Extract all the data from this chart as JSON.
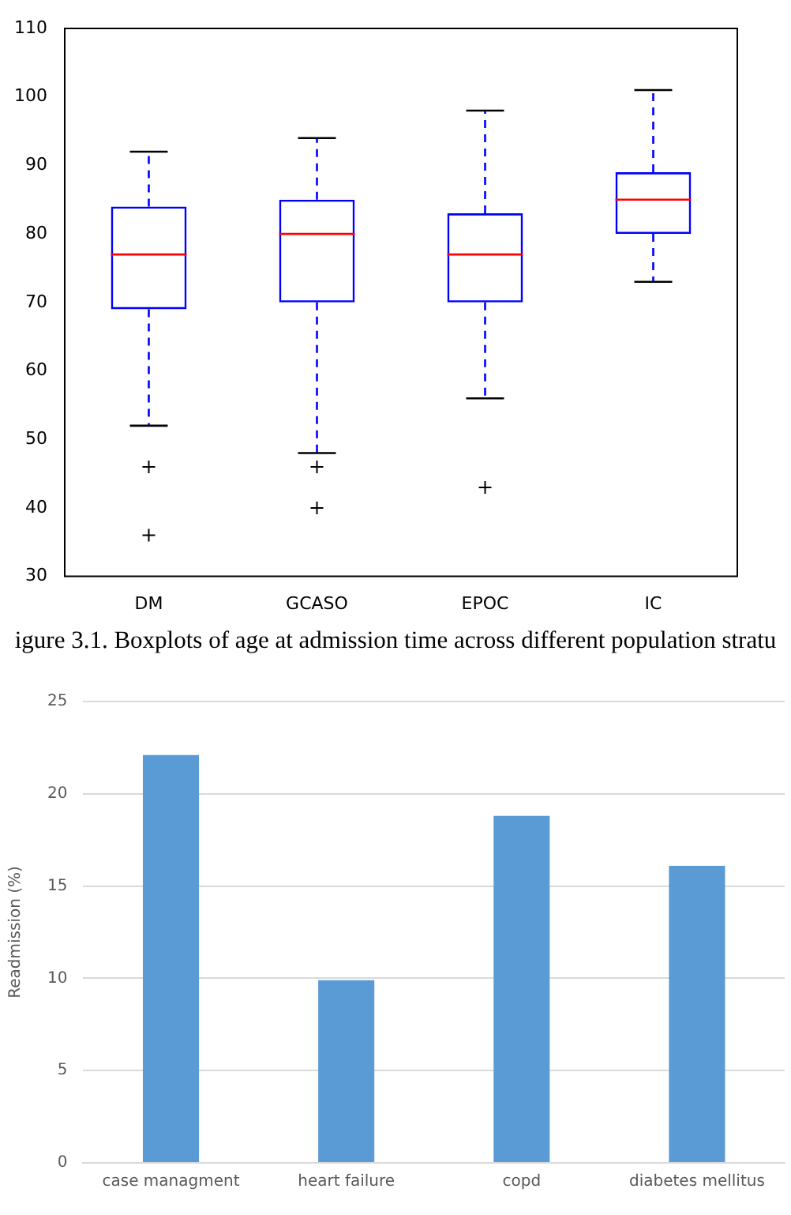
{
  "chart_data": [
    {
      "type": "box",
      "categories": [
        "DM",
        "GCASO",
        "EPOC",
        "IC"
      ],
      "boxes": [
        {
          "low": 52,
          "q1": 69,
          "median": 77,
          "q3": 84,
          "high": 92,
          "outliers": [
            46,
            36
          ]
        },
        {
          "low": 48,
          "q1": 70,
          "median": 80,
          "q3": 85,
          "high": 94,
          "outliers": [
            46,
            40
          ]
        },
        {
          "low": 56,
          "q1": 70,
          "median": 77,
          "q3": 83,
          "high": 98,
          "outliers": [
            43
          ]
        },
        {
          "low": 73,
          "q1": 80,
          "median": 85,
          "q3": 89,
          "high": 101
        }
      ],
      "color": "#0000ff",
      "ylim": [
        30,
        110
      ],
      "yticks": [
        30,
        40,
        50,
        60,
        70,
        80,
        90,
        100,
        110
      ],
      "grid": false,
      "marker": "cross",
      "annotations": [
        "igure 3.1. Boxplots of age at admission time across different population stratu"
      ]
    },
    {
      "type": "bar",
      "categories": [
        "case managment",
        "heart failure",
        "copd",
        "diabetes mellitus"
      ],
      "values": [
        22.1,
        9.9,
        18.8,
        16.1
      ],
      "color": "#5b9bd5",
      "ylabel": "Readmission (%)",
      "ylim": [
        0,
        25
      ],
      "yticks": [
        0,
        5,
        10,
        15,
        20,
        25
      ],
      "grid": "y"
    }
  ]
}
